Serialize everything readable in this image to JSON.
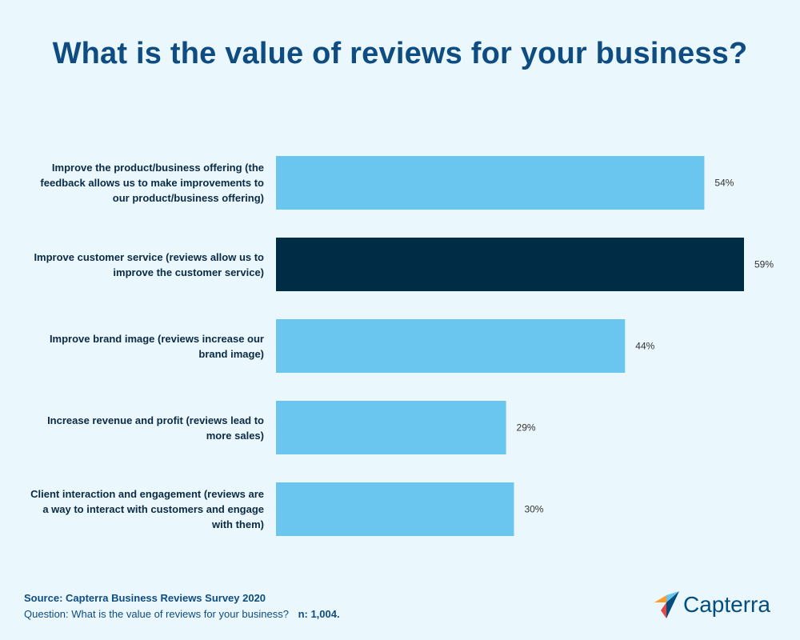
{
  "header": {
    "title": "What is the value of reviews for your business?"
  },
  "chart_data": {
    "type": "bar",
    "orientation": "horizontal",
    "categories": [
      [
        "Improve the product/business offering (the",
        "feedback allows us to make improvements to",
        "our product/business offering)"
      ],
      [
        "Improve customer service (reviews allow us to",
        "improve the customer service)"
      ],
      [
        "Improve brand image (reviews increase our",
        "brand image)"
      ],
      [
        "Increase revenue and profit (reviews lead to",
        "more sales)"
      ],
      [
        "Client interaction and engagement (reviews are",
        "a way to interact with customers and engage",
        "with them)"
      ]
    ],
    "values": [
      54,
      59,
      44,
      29,
      30
    ],
    "value_labels": [
      "54%",
      "59%",
      "44%",
      "29%",
      "30%"
    ],
    "highlight_index": 1,
    "colors": {
      "default": "#6ac6ee",
      "highlight": "#002d46"
    },
    "xlim": [
      0,
      59
    ],
    "grid": false,
    "legend": "none"
  },
  "footer": {
    "source": "Source: Capterra Business Reviews Survey 2020",
    "question": "Question: What is the value of reviews for your business?",
    "n": "n: 1,004."
  },
  "logo": {
    "text": "Capterra",
    "colors": [
      "#ff9d28",
      "#68c5ed",
      "#044d80",
      "#e54747"
    ]
  }
}
